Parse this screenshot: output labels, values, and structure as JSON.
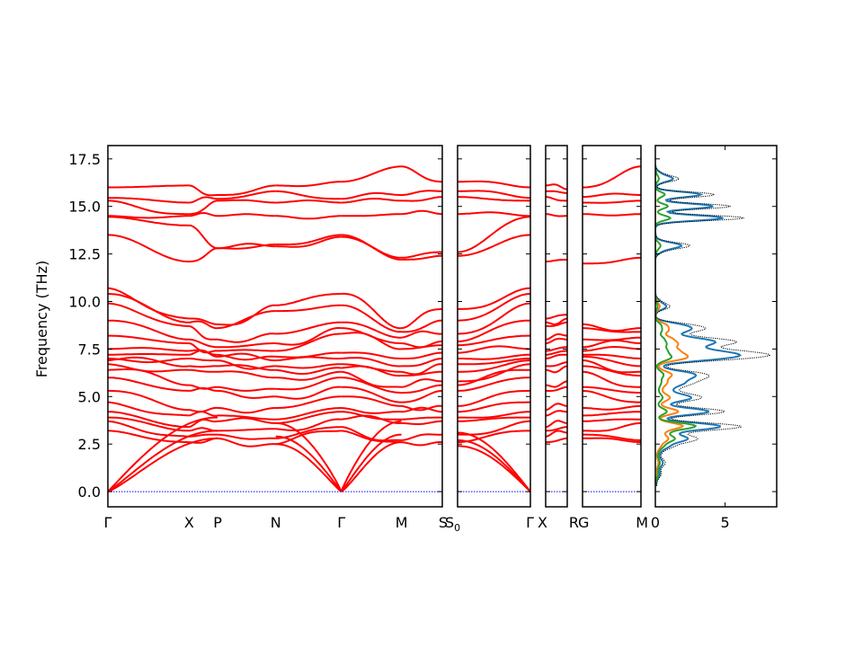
{
  "chart_data": {
    "type": "line",
    "ylabel": "Frequency (THz)",
    "ylim": [
      -0.8,
      18.2
    ],
    "yticks": [
      "0.0",
      "2.5",
      "5.0",
      "7.5",
      "10.0",
      "12.5",
      "15.0",
      "17.5"
    ],
    "band_color": "#ff0000",
    "zero_line_color": "#0000ff",
    "panels": [
      {
        "labels": [
          "Γ",
          "X",
          "P",
          "N",
          "Γ",
          "M",
          "S"
        ],
        "label_positions": [
          0.0,
          0.243,
          0.328,
          0.502,
          0.698,
          0.878,
          1.0
        ]
      },
      {
        "labels": [
          "S0",
          "Γ"
        ],
        "label_positions": [
          0.0,
          1.0
        ]
      },
      {
        "labels": [
          "X"
        ],
        "label_positions": [
          0.0
        ]
      },
      {
        "labels": [
          "R",
          "G",
          "M"
        ],
        "label_positions": [
          -0.02,
          0.0,
          1.0
        ]
      }
    ],
    "dos": {
      "xlim": [
        0,
        8.7
      ],
      "xticks": [
        "0",
        "5"
      ],
      "series_colors": [
        "#1f77b4",
        "#ff7f0e",
        "#2ca02c"
      ],
      "total_style": "black-dotted"
    }
  }
}
